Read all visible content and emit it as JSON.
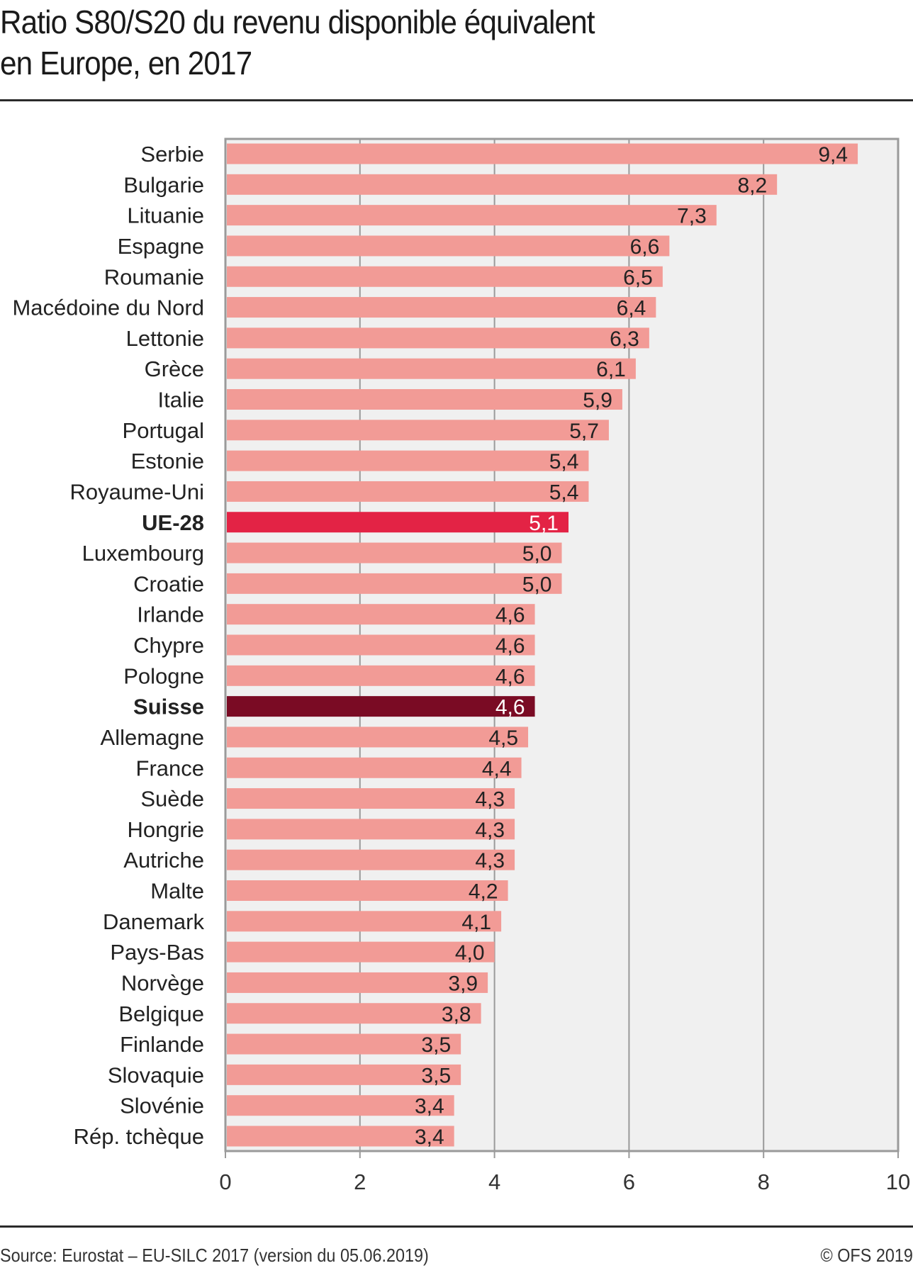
{
  "chart_data": {
    "type": "bar",
    "orientation": "horizontal",
    "title": "Ratio S80/S20 du revenu disponible équivalent en Europe, en 2017",
    "title_lines": [
      "Ratio S80/S20 du revenu disponible équivalent",
      "en Europe, en 2017"
    ],
    "xlabel": "",
    "ylabel": "",
    "xlim": [
      0,
      10
    ],
    "x_ticks": [
      0,
      2,
      4,
      6,
      8,
      10
    ],
    "x_tick_labels": [
      "0",
      "2",
      "4",
      "6",
      "8",
      "10"
    ],
    "grid": true,
    "decimal_separator": ",",
    "categories": [
      "Serbie",
      "Bulgarie",
      "Lituanie",
      "Espagne",
      "Roumanie",
      "Macédoine du Nord",
      "Lettonie",
      "Grèce",
      "Italie",
      "Portugal",
      "Estonie",
      "Royaume-Uni",
      "UE-28",
      "Luxembourg",
      "Croatie",
      "Irlande",
      "Chypre",
      "Pologne",
      "Suisse",
      "Allemagne",
      "France",
      "Suède",
      "Hongrie",
      "Autriche",
      "Malte",
      "Danemark",
      "Pays-Bas",
      "Norvège",
      "Belgique",
      "Finlande",
      "Slovaquie",
      "Slovénie",
      "Rép. tchèque"
    ],
    "values": [
      9.4,
      8.2,
      7.3,
      6.6,
      6.5,
      6.4,
      6.3,
      6.1,
      5.9,
      5.7,
      5.4,
      5.4,
      5.1,
      5.0,
      5.0,
      4.6,
      4.6,
      4.6,
      4.6,
      4.5,
      4.4,
      4.3,
      4.3,
      4.3,
      4.2,
      4.1,
      4.0,
      3.9,
      3.8,
      3.5,
      3.5,
      3.4,
      3.4
    ],
    "value_labels": [
      "9,4",
      "8,2",
      "7,3",
      "6,6",
      "6,5",
      "6,4",
      "6,3",
      "6,1",
      "5,9",
      "5,7",
      "5,4",
      "5,4",
      "5,1",
      "5,0",
      "5,0",
      "4,6",
      "4,6",
      "4,6",
      "4,6",
      "4,5",
      "4,4",
      "4,3",
      "4,3",
      "4,3",
      "4,2",
      "4,1",
      "4,0",
      "3,9",
      "3,8",
      "3,5",
      "3,5",
      "3,4",
      "3,4"
    ],
    "highlights": {
      "UE-28": {
        "color": "#e32345",
        "label_color": "#ffffff",
        "bold": true
      },
      "Suisse": {
        "color": "#7a0b24",
        "label_color": "#ffffff",
        "bold": true
      }
    },
    "colors": {
      "bar": "#f29b96",
      "plot_background": "#f0f0f0",
      "grid": "#9a9a9a",
      "frame": "#9a9a9a",
      "text": "#222222"
    }
  },
  "footer": {
    "source": "Source: Eurostat – EU-SILC 2017 (version du 05.06.2019)",
    "copyright": "© OFS 2019"
  }
}
